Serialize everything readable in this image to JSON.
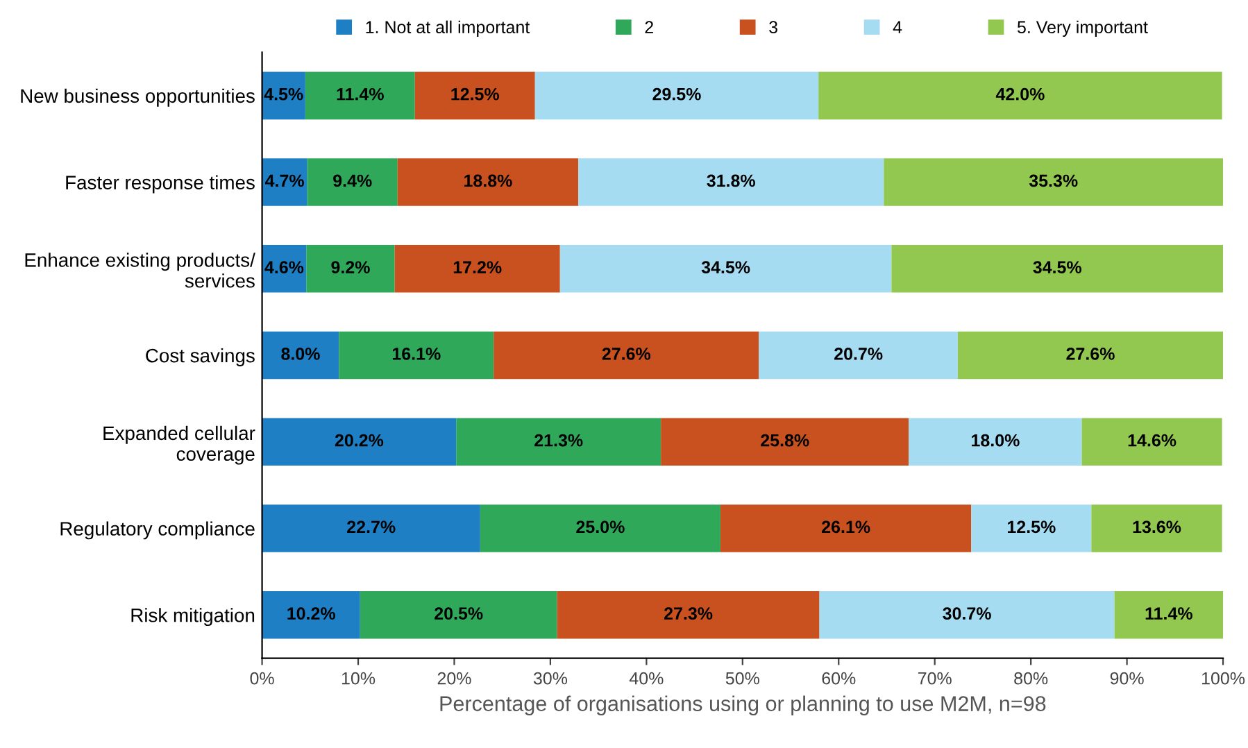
{
  "chart_data": {
    "type": "bar",
    "orientation": "horizontal",
    "stacked": true,
    "legend": "top",
    "grid": false,
    "xlabel": "Percentage of organisations using or planning to use M2M, n=98",
    "categories": [
      "New business opportunities",
      "Faster response times",
      "Enhance existing products/\nservices",
      "Cost savings",
      "Expanded cellular\ncoverage",
      "Regulatory compliance",
      "Risk mitigation"
    ],
    "xlim": [
      0,
      100
    ],
    "xticks": [
      {
        "value": 0,
        "label": "0%"
      },
      {
        "value": 10,
        "label": "10%"
      },
      {
        "value": 20,
        "label": "20%"
      },
      {
        "value": 30,
        "label": "30%"
      },
      {
        "value": 40,
        "label": "40%"
      },
      {
        "value": 50,
        "label": "50%"
      },
      {
        "value": 60,
        "label": "60%"
      },
      {
        "value": 70,
        "label": "70%"
      },
      {
        "value": 80,
        "label": "80%"
      },
      {
        "value": 90,
        "label": "90%"
      },
      {
        "value": 100,
        "label": "100%"
      }
    ],
    "series": [
      {
        "name": "1. Not at all important",
        "color": "#1f7fc4",
        "values": [
          4.5,
          4.7,
          4.6,
          8.0,
          20.2,
          22.7,
          10.2
        ],
        "value_labels": [
          "4.5%",
          "4.7%",
          "4.6%",
          "8.0%",
          "20.2%",
          "22.7%",
          "10.2%"
        ]
      },
      {
        "name": "2",
        "color": "#2fa85a",
        "values": [
          11.4,
          9.4,
          9.2,
          16.1,
          21.3,
          25.0,
          20.5
        ],
        "value_labels": [
          "11.4%",
          "9.4%",
          "9.2%",
          "16.1%",
          "21.3%",
          "25.0%",
          "20.5%"
        ]
      },
      {
        "name": "3",
        "color": "#c8511f",
        "values": [
          12.5,
          18.8,
          17.2,
          27.6,
          25.8,
          26.1,
          27.3
        ],
        "value_labels": [
          "12.5%",
          "18.8%",
          "17.2%",
          "27.6%",
          "25.8%",
          "26.1%",
          "27.3%"
        ]
      },
      {
        "name": "4",
        "color": "#a6dcf2",
        "values": [
          29.5,
          31.8,
          34.5,
          20.7,
          18.0,
          12.5,
          30.7
        ],
        "value_labels": [
          "29.5%",
          "31.8%",
          "34.5%",
          "20.7%",
          "18.0%",
          "12.5%",
          "30.7%"
        ]
      },
      {
        "name": "5. Very important",
        "color": "#92c84f",
        "values": [
          42.0,
          35.3,
          34.5,
          27.6,
          14.6,
          13.6,
          11.4
        ],
        "value_labels": [
          "42.0%",
          "35.3%",
          "34.5%",
          "27.6%",
          "14.6%",
          "13.6%",
          "11.4%"
        ]
      }
    ]
  }
}
